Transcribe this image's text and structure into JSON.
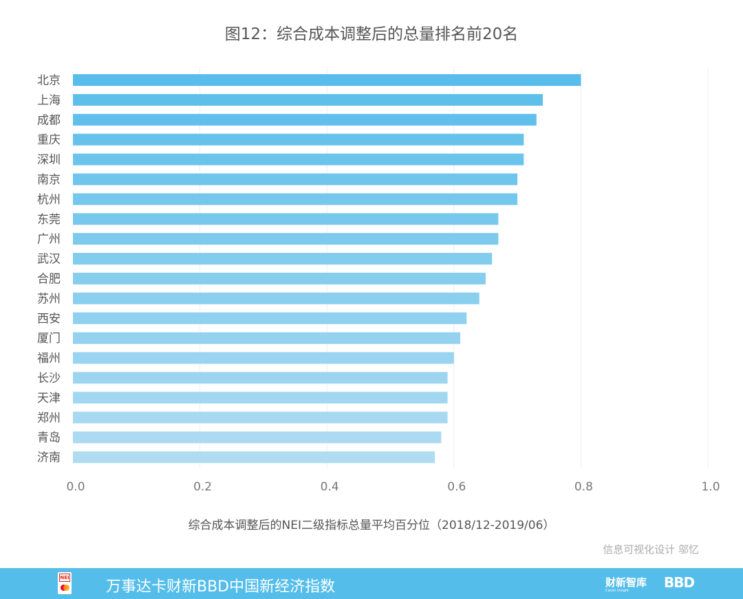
{
  "chart_data": {
    "type": "bar",
    "orientation": "horizontal",
    "title": "图12：综合成本调整后的总量排名前20名",
    "xlabel": "综合成本调整后的NEI二级指标总量平均百分位（2018/12-2019/06）",
    "ylabel": "",
    "xlim": [
      0,
      1.0
    ],
    "xticks": [
      "0.0",
      "0.2",
      "0.4",
      "0.6",
      "0.8",
      "1.0"
    ],
    "grid": true,
    "categories": [
      "北京",
      "上海",
      "成都",
      "重庆",
      "深圳",
      "南京",
      "杭州",
      "东莞",
      "广州",
      "武汉",
      "合肥",
      "苏州",
      "西安",
      "厦门",
      "福州",
      "长沙",
      "天津",
      "郑州",
      "青岛",
      "济南"
    ],
    "values": [
      0.8,
      0.74,
      0.73,
      0.71,
      0.71,
      0.7,
      0.7,
      0.67,
      0.67,
      0.66,
      0.65,
      0.64,
      0.62,
      0.61,
      0.6,
      0.59,
      0.59,
      0.59,
      0.58,
      0.57
    ],
    "colors": {
      "bar_start": "#58bdea",
      "bar_end": "#b0dcf2",
      "grid": "#eeeeee"
    }
  },
  "credit": "信息可视化设计 邬忆",
  "footer": {
    "title": "万事达卡财新BBD中国新经济指数",
    "brand_caixin": "财新智库",
    "brand_caixin_sub": "Caixin Insight",
    "brand_bbd": "BBD",
    "logo_text": "NEI",
    "background": "#54bde9"
  }
}
